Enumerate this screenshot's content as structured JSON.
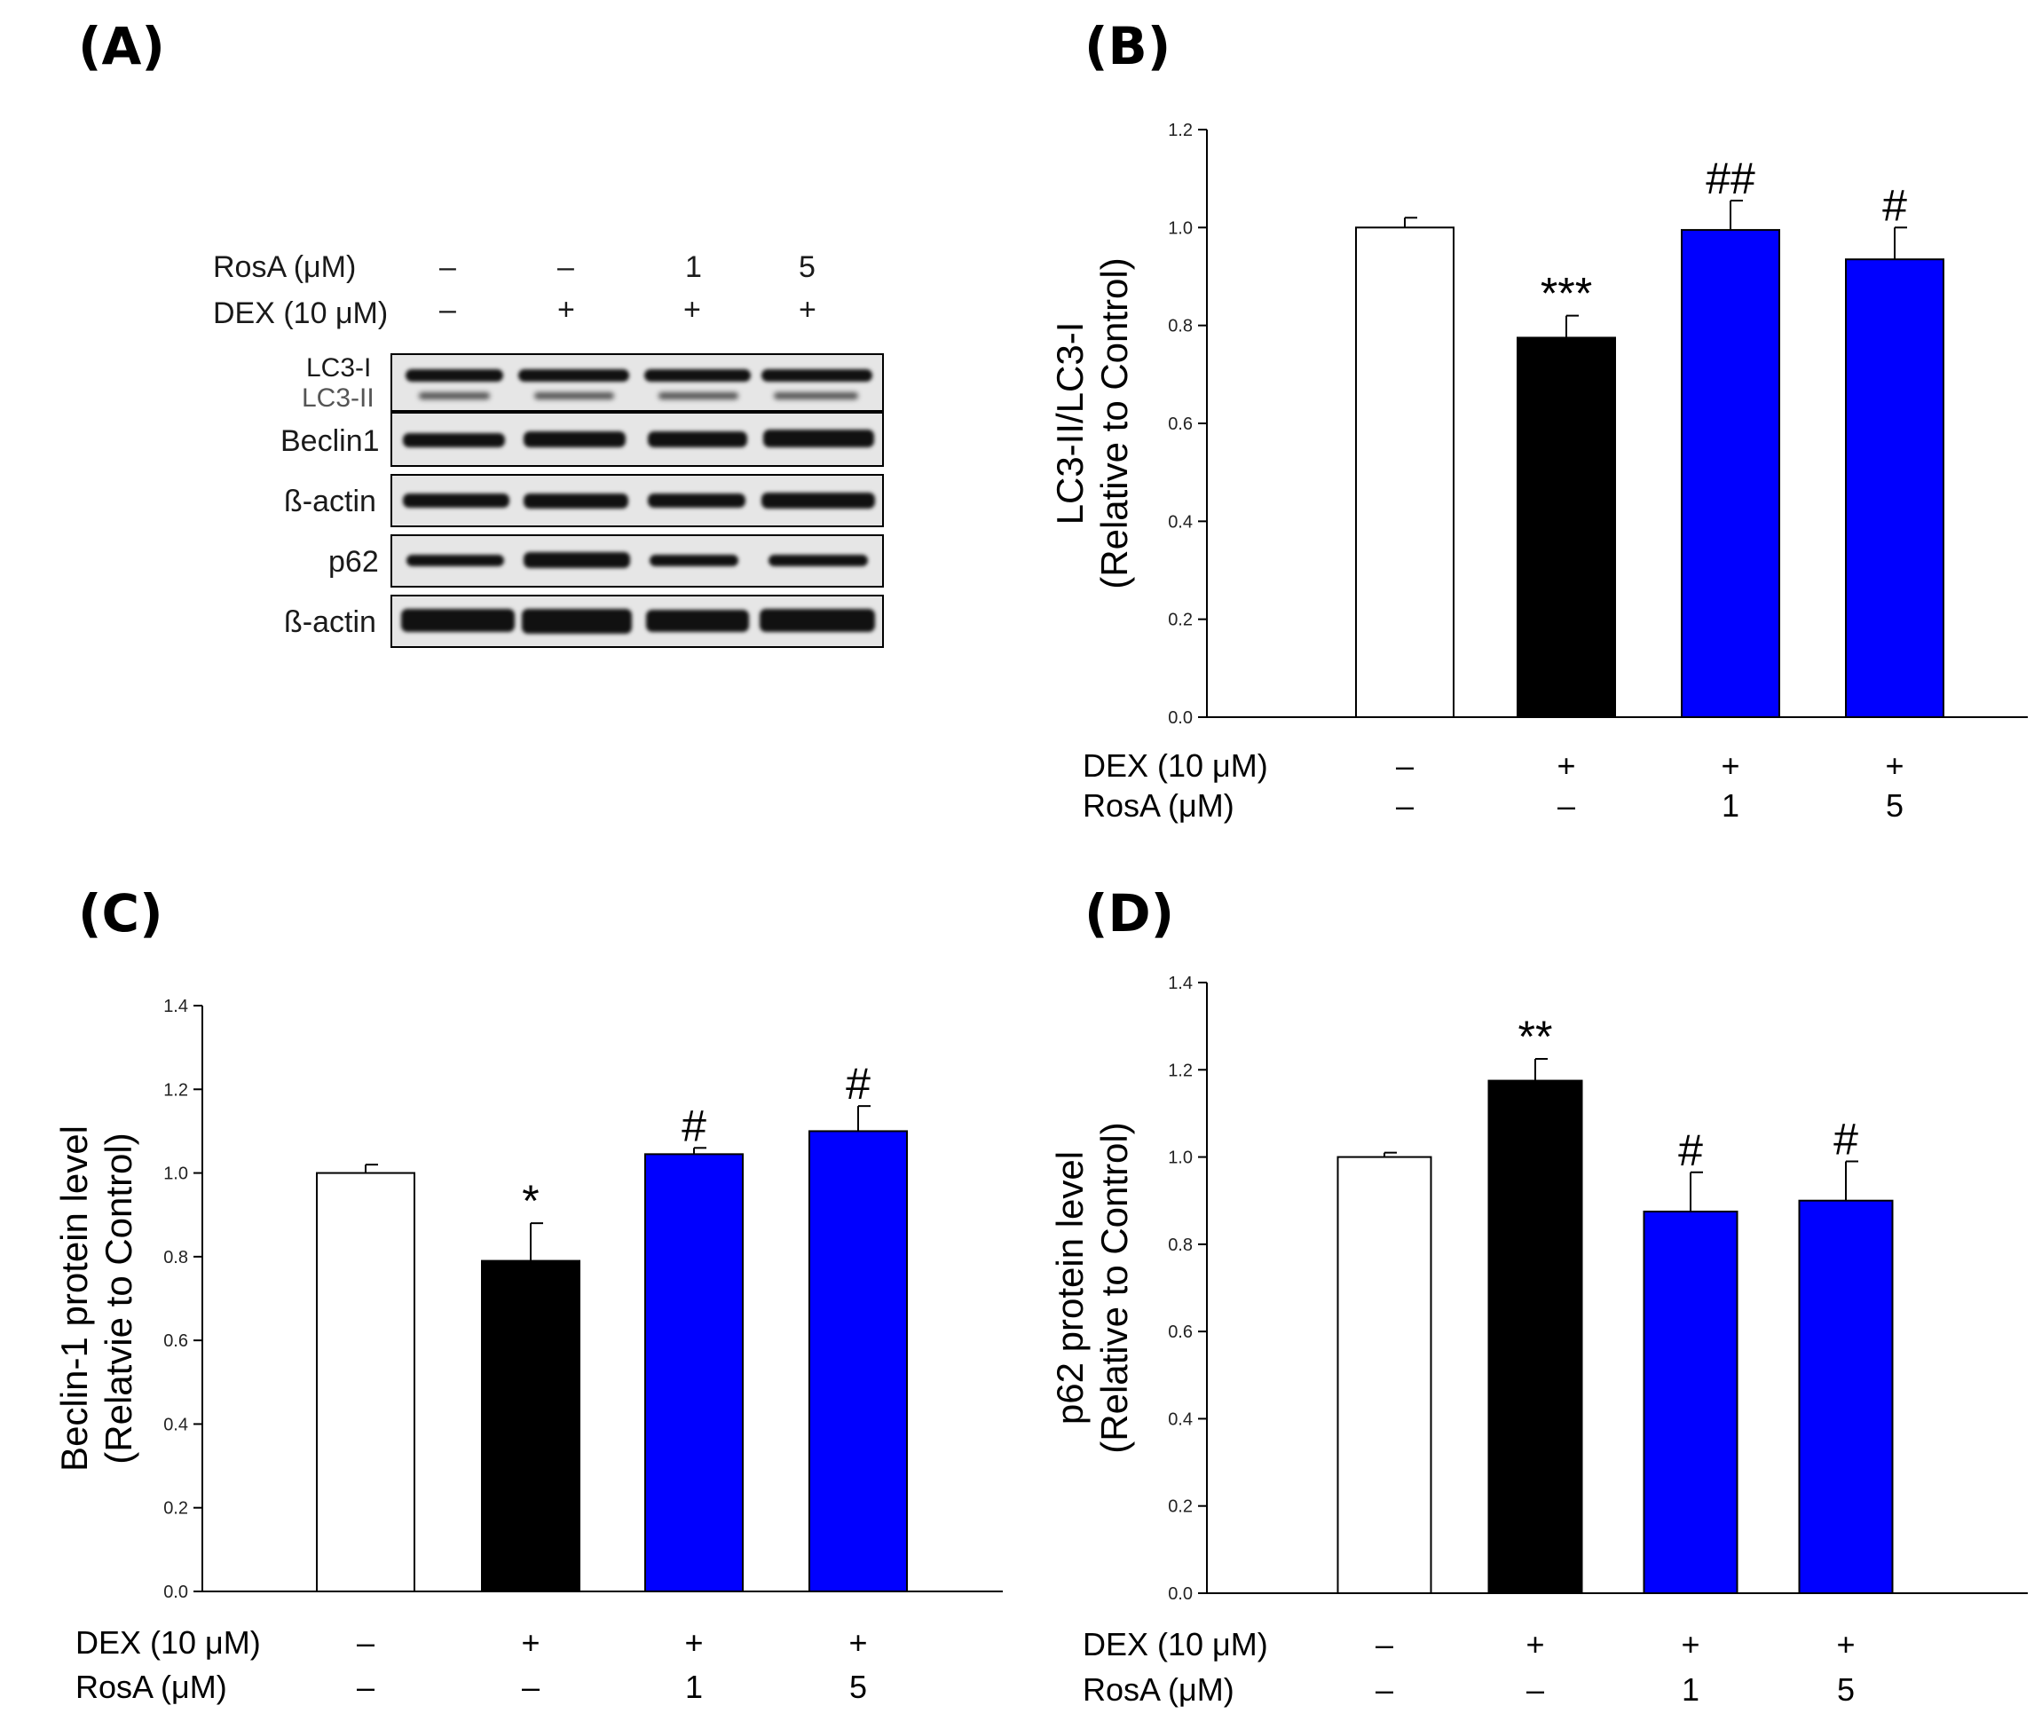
{
  "panels": [
    {
      "label": "(A)"
    },
    {
      "label": "(B)"
    },
    {
      "label": "(C)"
    },
    {
      "label": "(D)"
    }
  ],
  "blot": {
    "rosa_label": "RosA (μM)",
    "dex_label": "DEX (10 μM)",
    "rosa_values": [
      "–",
      "–",
      "1",
      "5"
    ],
    "dex_values": [
      "–",
      "+",
      "+",
      "+"
    ],
    "lc3i_label": "LC3-I",
    "lc3ii_label": "LC3-II",
    "beclin_label": "Beclin1",
    "actin_label": "ß-actin",
    "p62_label": "p62",
    "actin2_label": "ß-actin"
  },
  "colors": {
    "control": "#ffffff",
    "dex": "#000000",
    "rosa": "#0000ff"
  },
  "chart_data": [
    {
      "type": "bar",
      "panel": "(B)",
      "ylabel": [
        "LC3-II/LC3-I",
        "(Relative to Control)"
      ],
      "ylim": [
        0,
        1.2
      ],
      "yticks": [
        "0.0",
        "0.2",
        "0.4",
        "0.6",
        "0.8",
        "1.0",
        "1.2"
      ],
      "row1_label": "DEX (10 μM)",
      "row2_label": "RosA (μM)",
      "row1": [
        "–",
        "+",
        "+",
        "+"
      ],
      "row2": [
        "–",
        "–",
        "1",
        "5"
      ],
      "values": [
        1.0,
        0.775,
        0.995,
        0.935
      ],
      "errors": [
        0.02,
        0.045,
        0.06,
        0.065
      ],
      "annotations": [
        "",
        "***",
        "##",
        "#"
      ],
      "bar_colors": [
        "#ffffff",
        "#000000",
        "#0000ff",
        "#0000ff"
      ]
    },
    {
      "type": "bar",
      "panel": "(C)",
      "ylabel": [
        "Beclin-1 protein level",
        "(Relatvie to Control)"
      ],
      "ylim": [
        0,
        1.4
      ],
      "yticks": [
        "0.0",
        "0.2",
        "0.4",
        "0.6",
        "0.8",
        "1.0",
        "1.2",
        "1.4"
      ],
      "row1_label": "DEX (10 μM)",
      "row2_label": "RosA (μM)",
      "row1": [
        "–",
        "+",
        "+",
        "+"
      ],
      "row2": [
        "–",
        "–",
        "1",
        "5"
      ],
      "values": [
        1.0,
        0.79,
        1.045,
        1.1
      ],
      "errors": [
        0.02,
        0.09,
        0.015,
        0.06
      ],
      "annotations": [
        "",
        "*",
        "#",
        "#"
      ],
      "bar_colors": [
        "#ffffff",
        "#000000",
        "#0000ff",
        "#0000ff"
      ]
    },
    {
      "type": "bar",
      "panel": "(D)",
      "ylabel": [
        "p62 protein level",
        "(Relative to Control)"
      ],
      "ylim": [
        0,
        1.4
      ],
      "yticks": [
        "0.0",
        "0.2",
        "0.4",
        "0.6",
        "0.8",
        "1.0",
        "1.2",
        "1.4"
      ],
      "row1_label": "DEX (10 μM)",
      "row2_label": "RosA (μM)",
      "row1": [
        "–",
        "+",
        "+",
        "+"
      ],
      "row2": [
        "–",
        "–",
        "1",
        "5"
      ],
      "values": [
        1.0,
        1.175,
        0.875,
        0.9
      ],
      "errors": [
        0.01,
        0.05,
        0.09,
        0.09
      ],
      "annotations": [
        "",
        "**",
        "#",
        "#"
      ],
      "bar_colors": [
        "#ffffff",
        "#000000",
        "#0000ff",
        "#0000ff"
      ]
    }
  ]
}
